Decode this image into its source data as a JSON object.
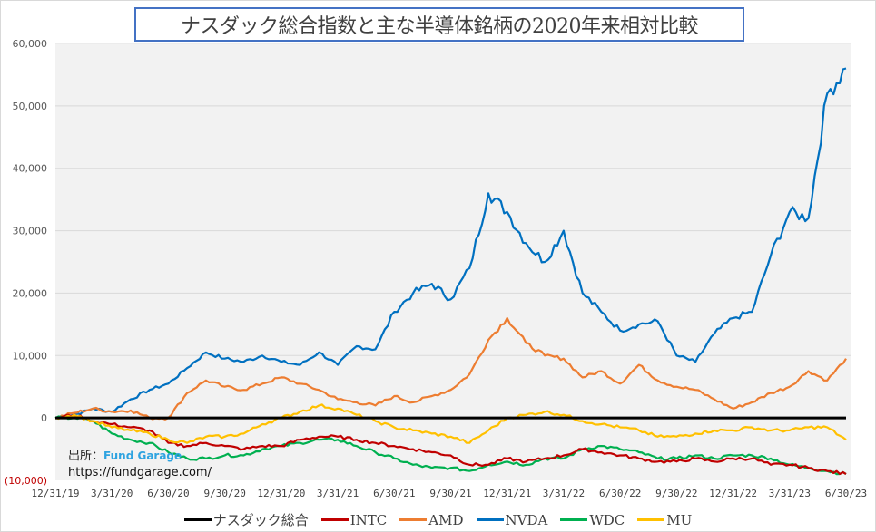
{
  "chart_data": {
    "type": "line",
    "title": "ナスダック総合指数と主な半導体銘柄の2020年来相対比較",
    "xlabel": "",
    "ylabel": "",
    "ylim": [
      -10000,
      60000
    ],
    "yticks": [
      {
        "value": 60000,
        "label": "60,000"
      },
      {
        "value": 50000,
        "label": "50,000"
      },
      {
        "value": 40000,
        "label": "40,000"
      },
      {
        "value": 30000,
        "label": "30,000"
      },
      {
        "value": 20000,
        "label": "20,000"
      },
      {
        "value": 10000,
        "label": "10,000"
      },
      {
        "value": 0,
        "label": "0"
      },
      {
        "value": -10000,
        "label": "(10,000)"
      }
    ],
    "xtick_labels": [
      "12/31/19",
      "3/31/20",
      "6/30/20",
      "9/30/20",
      "12/31/20",
      "3/31/21",
      "6/30/21",
      "9/30/21",
      "12/31/21",
      "3/31/22",
      "6/30/22",
      "9/30/22",
      "12/31/22",
      "3/31/23",
      "6/30/23"
    ],
    "grid": true,
    "legend_position": "bottom",
    "x_unit": "months since 12/31/19",
    "x": [
      0,
      1,
      2,
      3,
      4,
      5,
      6,
      7,
      8,
      9,
      10,
      11,
      12,
      13,
      14,
      15,
      16,
      17,
      18,
      19,
      20,
      21,
      22,
      23,
      24,
      25,
      26,
      27,
      28,
      29,
      30,
      31,
      32,
      33,
      34,
      35,
      36,
      37,
      38,
      39,
      40,
      41,
      42
    ],
    "series": [
      {
        "name": "ナスダック総合",
        "color": "#000000",
        "values": [
          0,
          0,
          0,
          0,
          0,
          0,
          0,
          0,
          0,
          0,
          0,
          0,
          0,
          0,
          0,
          0,
          0,
          0,
          0,
          0,
          0,
          0,
          0,
          0,
          0,
          0,
          0,
          0,
          0,
          0,
          0,
          0,
          0,
          0,
          0,
          0,
          0,
          0,
          0,
          0,
          0,
          0,
          0
        ]
      },
      {
        "name": "INTC",
        "color": "#c00000",
        "values": [
          0,
          500,
          -500,
          -1000,
          -1500,
          -2000,
          -4000,
          -4500,
          -4000,
          -4500,
          -5000,
          -4500,
          -4500,
          -3500,
          -3000,
          -3000,
          -3500,
          -4000,
          -4500,
          -5000,
          -5500,
          -6000,
          -7500,
          -7500,
          -6500,
          -7000,
          -6500,
          -6000,
          -5000,
          -5500,
          -6000,
          -6500,
          -7000,
          -7000,
          -6500,
          -7000,
          -6500,
          -6500,
          -7500,
          -7500,
          -8000,
          -8500,
          -9000
        ]
      },
      {
        "name": "AMD",
        "color": "#ed7d31",
        "values": [
          0,
          800,
          1500,
          1000,
          1200,
          0,
          0,
          4000,
          6000,
          5000,
          4500,
          5500,
          6500,
          5500,
          4500,
          3000,
          2500,
          2000,
          3500,
          2500,
          3500,
          4500,
          7000,
          12500,
          16000,
          12000,
          10000,
          9500,
          6500,
          7500,
          5500,
          8500,
          6000,
          5000,
          4500,
          3000,
          1500,
          2500,
          4000,
          5000,
          7500,
          6000,
          9500
        ]
      },
      {
        "name": "NVDA",
        "color": "#0070c0",
        "values": [
          0,
          500,
          1500,
          1000,
          3000,
          4500,
          5500,
          8000,
          10500,
          9500,
          9000,
          10000,
          9000,
          8500,
          10500,
          8500,
          11500,
          11000,
          17000,
          20000,
          21500,
          19000,
          24000,
          36000,
          33000,
          28000,
          25000,
          30000,
          20000,
          17000,
          14000,
          15000,
          15500,
          10000,
          9000,
          13500,
          16000,
          17000,
          26000,
          33000,
          32000,
          52000,
          56000
        ]
      },
      {
        "name": "WDC",
        "color": "#00b050",
        "values": [
          0,
          0,
          -500,
          -2500,
          -3500,
          -4000,
          -5500,
          -6500,
          -6500,
          -6000,
          -6000,
          -5000,
          -4500,
          -4000,
          -3500,
          -3500,
          -4500,
          -5500,
          -6500,
          -7500,
          -8000,
          -8000,
          -8500,
          -7500,
          -7000,
          -7500,
          -6500,
          -6500,
          -5000,
          -4500,
          -5000,
          -5500,
          -6500,
          -6500,
          -6000,
          -6500,
          -6000,
          -6000,
          -6500,
          -7500,
          -8000,
          -8500,
          -9000
        ]
      },
      {
        "name": "MU",
        "color": "#ffc000",
        "values": [
          0,
          500,
          -500,
          -1500,
          -2000,
          -2500,
          -3500,
          -4000,
          -3000,
          -3000,
          -2500,
          -1000,
          0,
          1000,
          2000,
          1500,
          500,
          -500,
          -1500,
          -2000,
          -2500,
          -3000,
          -4000,
          -2000,
          0,
          500,
          1000,
          500,
          -500,
          -1000,
          -1500,
          -2000,
          -3000,
          -3000,
          -2500,
          -2000,
          -2000,
          -1500,
          -2000,
          -2000,
          -1500,
          -1500,
          -3500
        ]
      }
    ]
  },
  "source": {
    "label": "出所：",
    "brand": "Fund Garage",
    "url": "https://fundgarage.com/"
  }
}
